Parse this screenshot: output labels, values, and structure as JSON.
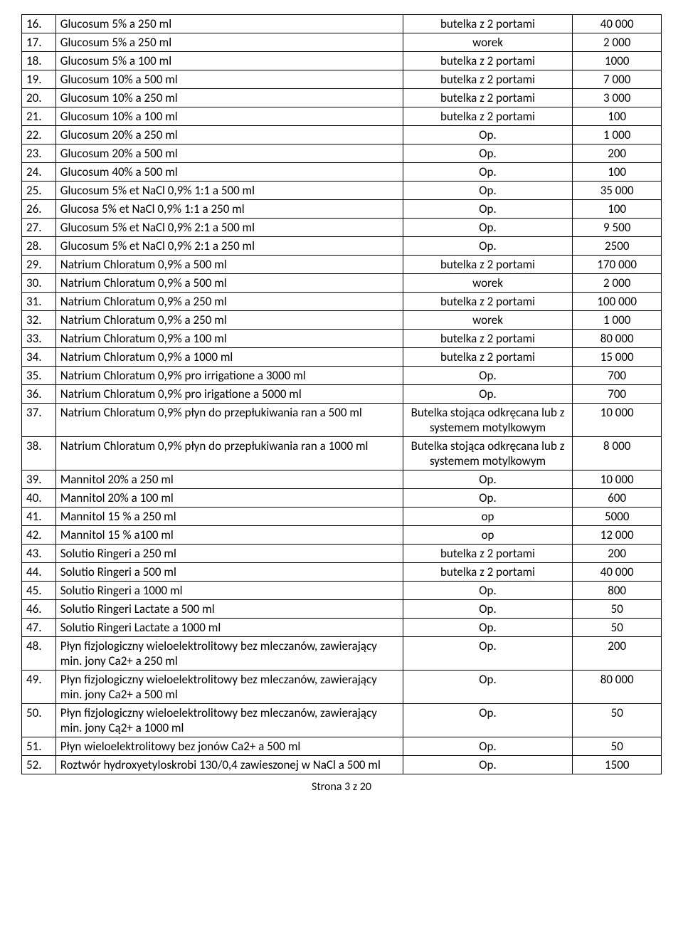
{
  "footer": "Strona 3 z 20",
  "rows": [
    {
      "n": "16.",
      "name": "Glucosum 5% a 250 ml",
      "pack": "butelka z 2 portami",
      "qty": "40 000"
    },
    {
      "n": "17.",
      "name": "Glucosum 5% a 250 ml",
      "pack": "worek",
      "qty": "2 000"
    },
    {
      "n": "18.",
      "name": "Glucosum 5% a 100 ml",
      "pack": "butelka z 2 portami",
      "qty": "1000"
    },
    {
      "n": "19.",
      "name": "Glucosum 10% a 500 ml",
      "pack": "butelka z 2 portami",
      "qty": "7 000"
    },
    {
      "n": "20.",
      "name": "Glucosum 10% a 250 ml",
      "pack": "butelka z 2 portami",
      "qty": "3 000"
    },
    {
      "n": "21.",
      "name": "Glucosum 10% a 100 ml",
      "pack": "butelka z 2 portami",
      "qty": "100"
    },
    {
      "n": "22.",
      "name": "Glucosum 20% a 250 ml",
      "pack": "Op.",
      "qty": "1 000"
    },
    {
      "n": "23.",
      "name": "Glucosum 20% a 500 ml",
      "pack": "Op.",
      "qty": "200"
    },
    {
      "n": "24.",
      "name": "Glucosum 40% a 500 ml",
      "pack": "Op.",
      "qty": "100"
    },
    {
      "n": "25.",
      "name": "Glucosum 5% et NaCl 0,9% 1:1  a 500 ml",
      "pack": "Op.",
      "qty": "35 000"
    },
    {
      "n": "26.",
      "name": "Glucosa 5% et NaCl 0,9% 1:1 a 250 ml",
      "pack": "Op.",
      "qty": "100"
    },
    {
      "n": "27.",
      "name": "Glucosum 5% et NaCl 0,9% 2:1   a 500 ml",
      "pack": "Op.",
      "qty": "9 500"
    },
    {
      "n": "28.",
      "name": "Glucosum 5% et NaCl 0,9% 2:1    a 250 ml",
      "pack": "Op.",
      "qty": "2500"
    },
    {
      "n": "29.",
      "name": "Natrium Chloratum 0,9% a 500 ml",
      "pack": "butelka z 2 portami",
      "qty": "170 000"
    },
    {
      "n": "30.",
      "name": "Natrium Chloratum 0,9% a 500 ml",
      "pack": "worek",
      "qty": "2 000"
    },
    {
      "n": "31.",
      "name": "Natrium Chloratum 0,9% a 250 ml",
      "pack": "butelka z 2 portami",
      "qty": "100 000"
    },
    {
      "n": "32.",
      "name": "Natrium Chloratum 0,9% a 250 ml",
      "pack": "worek",
      "qty": "1 000"
    },
    {
      "n": "33.",
      "name": "Natrium Chloratum 0,9% a 100 ml",
      "pack": "butelka z 2 portami",
      "qty": "80 000"
    },
    {
      "n": "34.",
      "name": "Natrium Chloratum 0,9% a 1000 ml",
      "pack": "butelka z 2 portami",
      "qty": "15 000"
    },
    {
      "n": "35.",
      "name": "Natrium Chloratum 0,9% pro irrigatione a 3000 ml",
      "pack": "Op.",
      "qty": "700"
    },
    {
      "n": "36.",
      "name": "Natrium Chloratum 0,9% pro irigatione a 5000 ml",
      "pack": "Op.",
      "qty": "700"
    },
    {
      "n": "37.",
      "name": "Natrium Chloratum 0,9% płyn do przepłukiwania ran a 500 ml",
      "pack": "Butelka stojąca odkręcana lub z systemem motylkowym",
      "qty": "10 000"
    },
    {
      "n": "38.",
      "name": "Natrium Chloratum 0,9% płyn do przepłukiwania ran a 1000 ml",
      "pack": "Butelka stojąca odkręcana lub z systemem motylkowym",
      "qty": "8 000"
    },
    {
      "n": "39.",
      "name": "Mannitol 20% a 250 ml",
      "pack": "Op.",
      "qty": "10 000"
    },
    {
      "n": "40.",
      "name": "Mannitol 20% a 100 ml",
      "pack": "Op.",
      "qty": "600"
    },
    {
      "n": "41.",
      "name": "Mannitol 15 % a 250 ml",
      "pack": "op",
      "qty": "5000"
    },
    {
      "n": "42.",
      "name": "Mannitol 15 % a100 ml",
      "pack": "op",
      "qty": "12 000"
    },
    {
      "n": "43.",
      "name": "Solutio Ringeri a 250 ml",
      "pack": "butelka z 2 portami",
      "qty": "200"
    },
    {
      "n": "44.",
      "name": "Solutio Ringeri a 500 ml",
      "pack": "butelka z 2 portami",
      "qty": "40 000"
    },
    {
      "n": "45.",
      "name": "Solutio Ringeri a 1000 ml",
      "pack": "Op.",
      "qty": "800"
    },
    {
      "n": "46.",
      "name": "Solutio Ringeri Lactate a 500 ml",
      "pack": "Op.",
      "qty": "50"
    },
    {
      "n": "47.",
      "name": "Solutio Ringeri Lactate a 1000 ml",
      "pack": "Op.",
      "qty": "50"
    },
    {
      "n": "48.",
      "name": "Płyn fizjologiczny wieloelektrolitowy bez mleczanów, zawierający min. jony Ca2+ a 250 ml",
      "pack": "Op.",
      "qty": "200"
    },
    {
      "n": "49.",
      "name": "Płyn fizjologiczny wieloelektrolitowy bez mleczanów, zawierający min. jony Ca2+ a 500 ml",
      "pack": "Op.",
      "qty": "80 000"
    },
    {
      "n": "50.",
      "name": "Płyn fizjologiczny wieloelektrolitowy bez mleczanów, zawierający min. jony Cą2+ a 1000 ml",
      "pack": "Op.",
      "qty": "50"
    },
    {
      "n": "51.",
      "name": "Płyn wieloelektrolitowy bez jonów Ca2+ a 500 ml",
      "pack": "Op.",
      "qty": "50"
    },
    {
      "n": "52.",
      "name": "Roztwór hydroxyetyloskrobi 130/0,4 zawieszonej w NaCl a 500 ml",
      "pack": "Op.",
      "qty": "1500"
    }
  ]
}
